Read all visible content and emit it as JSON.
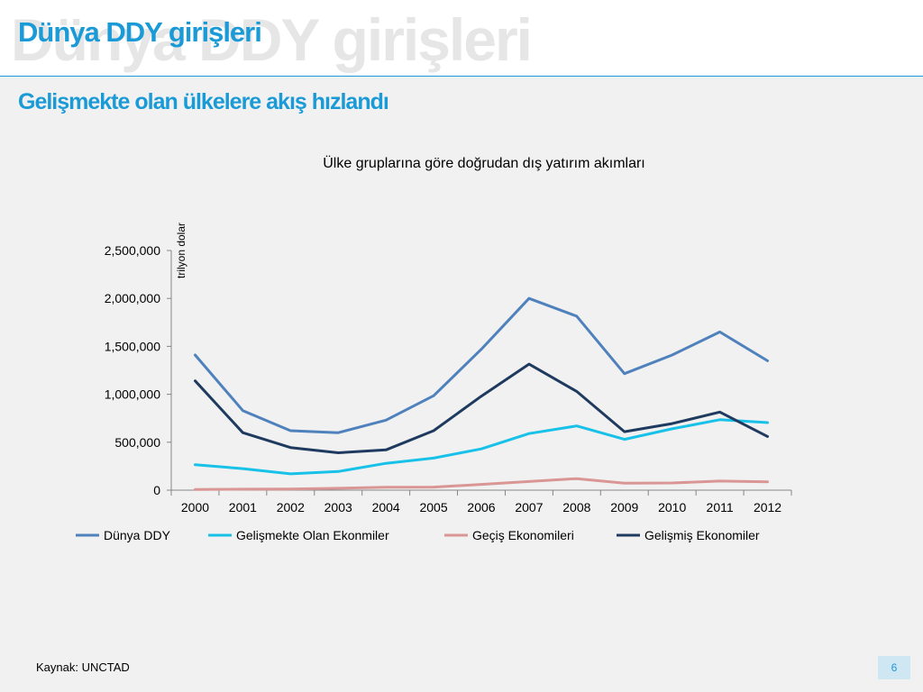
{
  "slide": {
    "title": "Dünya DDY girişleri",
    "subtitle": "Gelişmekte olan ülkelere akış hızlandı",
    "source": "Kaynak: UNCTAD",
    "page_number": "6"
  },
  "colors": {
    "accent": "#1a9ad6",
    "background": "#f1f1f1"
  },
  "chart_data": {
    "type": "line",
    "title": "Ülke gruplarına göre doğrudan dış yatırım akımları",
    "ylabel": "trilyon  dolar",
    "xlabel": "",
    "categories": [
      "2000",
      "2001",
      "2002",
      "2003",
      "2004",
      "2005",
      "2006",
      "2007",
      "2008",
      "2009",
      "2010",
      "2011",
      "2012"
    ],
    "ylim": [
      0,
      2500000
    ],
    "yticks": [
      0,
      500000,
      1000000,
      1500000,
      2000000,
      2500000
    ],
    "ytick_labels": [
      "0",
      "500,000",
      "1,000,000",
      "1,500,000",
      "2,000,000",
      "2,500,000"
    ],
    "grid": false,
    "legend_position": "bottom",
    "series": [
      {
        "name": "Dünya DDY",
        "color": "#4f81bd",
        "values": [
          1410000,
          830000,
          620000,
          600000,
          730000,
          985000,
          1470000,
          2000000,
          1815000,
          1215000,
          1410000,
          1650000,
          1350000
        ]
      },
      {
        "name": "Gelişmekte Olan Ekonmiler",
        "color": "#17c1e8",
        "values": [
          265000,
          225000,
          170000,
          195000,
          280000,
          335000,
          430000,
          590000,
          670000,
          530000,
          640000,
          735000,
          705000
        ]
      },
      {
        "name": "Geçiş Ekonomileri",
        "color": "#d99694",
        "values": [
          7000,
          10000,
          12000,
          20000,
          30000,
          32000,
          60000,
          90000,
          120000,
          72000,
          75000,
          95000,
          87000
        ]
      },
      {
        "name": "Gelişmiş Ekonomiler",
        "color": "#1f3a5f",
        "values": [
          1140000,
          600000,
          445000,
          390000,
          420000,
          620000,
          980000,
          1315000,
          1030000,
          610000,
          695000,
          815000,
          560000
        ]
      }
    ]
  }
}
